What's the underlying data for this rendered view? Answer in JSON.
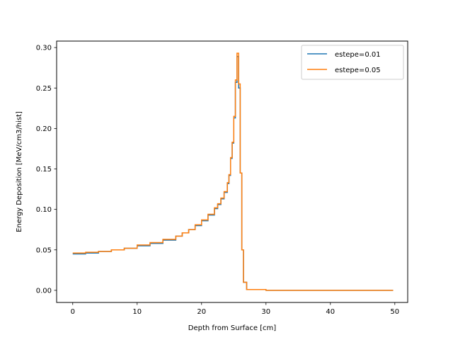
{
  "chart_data": {
    "type": "line",
    "step": true,
    "title": "",
    "xlabel": "Depth from Surface [cm]",
    "ylabel": "Energy Deposition [MeV/cm3/hist]",
    "xlim": [
      -2.5,
      52.0
    ],
    "ylim": [
      -0.015,
      0.308
    ],
    "xticks": [
      0,
      10,
      20,
      30,
      40,
      50
    ],
    "yticks": [
      0.0,
      0.05,
      0.1,
      0.15,
      0.2,
      0.25,
      0.3
    ],
    "xtick_labels": [
      "0",
      "10",
      "20",
      "30",
      "40",
      "50"
    ],
    "ytick_labels": [
      "0.00",
      "0.05",
      "0.10",
      "0.15",
      "0.20",
      "0.25",
      "0.30"
    ],
    "grid": false,
    "legend_position": "top-right",
    "series": [
      {
        "name": "estepe=0.01",
        "color": "#1f77b4",
        "x": [
          0,
          2,
          4,
          6,
          8,
          10,
          12,
          14,
          16,
          17,
          18,
          19,
          20,
          21,
          22,
          22.5,
          23,
          23.5,
          24,
          24.25,
          24.5,
          24.75,
          25,
          25.25,
          25.5,
          25.75,
          26,
          26.25,
          26.5,
          27,
          30,
          40,
          49.75
        ],
        "y": [
          0.045,
          0.046,
          0.048,
          0.05,
          0.052,
          0.055,
          0.058,
          0.062,
          0.067,
          0.071,
          0.075,
          0.08,
          0.086,
          0.093,
          0.101,
          0.106,
          0.113,
          0.121,
          0.132,
          0.142,
          0.163,
          0.182,
          0.213,
          0.257,
          0.289,
          0.25,
          0.145,
          0.05,
          0.01,
          0.001,
          0.0,
          0.0,
          0.0
        ]
      },
      {
        "name": "estepe=0.05",
        "color": "#ff7f0e",
        "x": [
          0,
          2,
          4,
          6,
          8,
          10,
          12,
          14,
          16,
          17,
          18,
          19,
          20,
          21,
          22,
          22.5,
          23,
          23.5,
          24,
          24.25,
          24.5,
          24.75,
          25,
          25.25,
          25.5,
          25.75,
          26,
          26.25,
          26.5,
          27,
          30,
          40,
          49.75
        ],
        "y": [
          0.046,
          0.047,
          0.048,
          0.05,
          0.052,
          0.056,
          0.059,
          0.063,
          0.067,
          0.071,
          0.075,
          0.081,
          0.087,
          0.094,
          0.102,
          0.107,
          0.114,
          0.122,
          0.133,
          0.143,
          0.164,
          0.183,
          0.215,
          0.26,
          0.293,
          0.255,
          0.145,
          0.05,
          0.01,
          0.001,
          0.0,
          0.0,
          0.0
        ]
      }
    ]
  }
}
